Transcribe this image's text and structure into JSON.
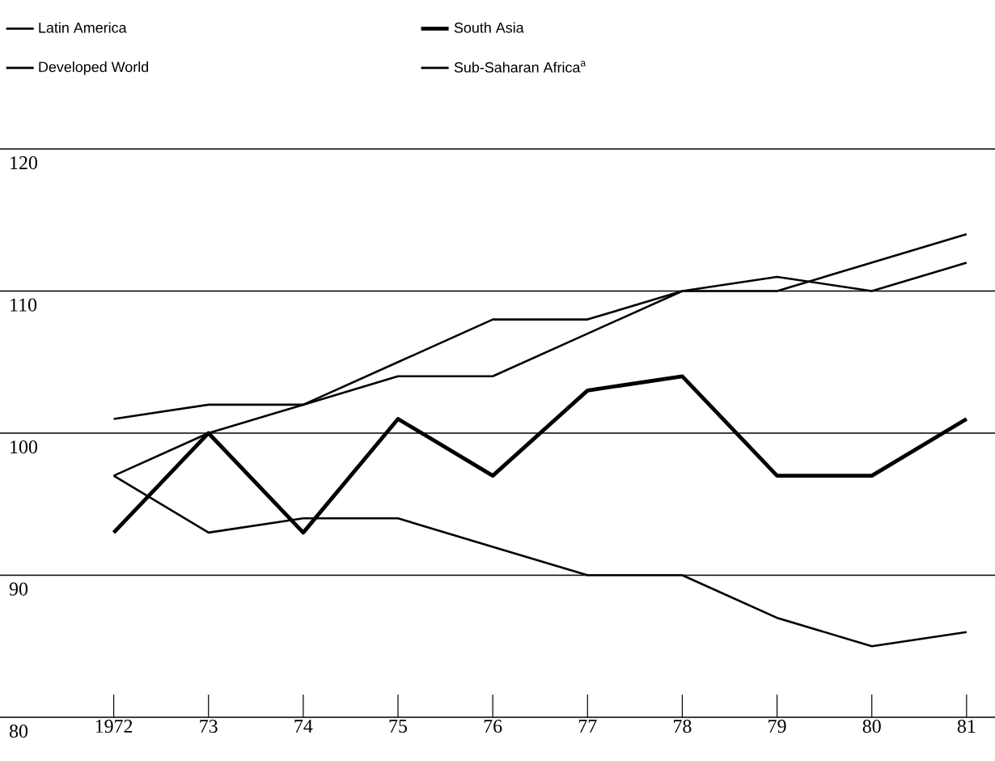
{
  "chart_data": {
    "type": "line",
    "x": [
      1972,
      1973,
      1974,
      1975,
      1976,
      1977,
      1978,
      1979,
      1980,
      1981
    ],
    "series": [
      {
        "name": "Latin America",
        "color": "#000000",
        "values": [
          101,
          102,
          102,
          104,
          104,
          107,
          110,
          110,
          112,
          114
        ]
      },
      {
        "name": "South Asia",
        "color": "#000000",
        "values": [
          93,
          100,
          93,
          101,
          97,
          103,
          104,
          97,
          97,
          101
        ]
      },
      {
        "name": "Developed World",
        "color": "#000000",
        "values": [
          97,
          100,
          102,
          105,
          108,
          108,
          110,
          111,
          110,
          112
        ]
      },
      {
        "name": "Sub-Saharan Africa$^{a}$",
        "color": "#000000",
        "values": [
          97,
          93,
          94,
          94,
          92,
          90,
          90,
          87,
          85,
          86
        ]
      }
    ],
    "xlim": [
      1970.8,
      1981.3
    ],
    "xticks": [
      {
        "value": 1972,
        "label": "1972"
      },
      {
        "value": 1973,
        "label": "73"
      },
      {
        "value": 1974,
        "label": "74"
      },
      {
        "value": 1975,
        "label": "75"
      },
      {
        "value": 1976,
        "label": "76"
      },
      {
        "value": 1977,
        "label": "77"
      },
      {
        "value": 1978,
        "label": "78"
      },
      {
        "value": 1979,
        "label": "79"
      },
      {
        "value": 1980,
        "label": "80"
      },
      {
        "value": 1981,
        "label": "81"
      }
    ],
    "ylim": [
      80,
      120
    ],
    "yticks": [
      80,
      90,
      100,
      110,
      120
    ],
    "grid": "y",
    "legend": "top",
    "marker": "none",
    "line_style": "solid"
  }
}
